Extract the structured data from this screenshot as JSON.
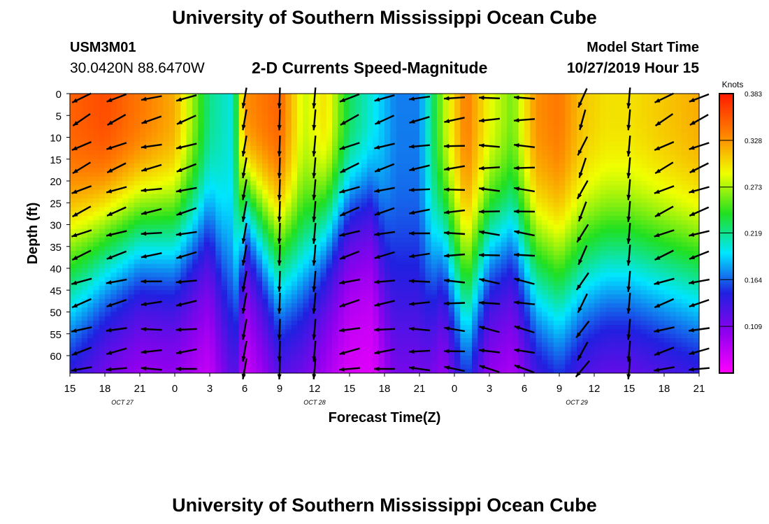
{
  "title": "University of Southern Mississippi Ocean Cube",
  "footer": "University of Southern Mississippi Ocean Cube",
  "station": "USM3M01",
  "coords": "30.0420N 88.6470W",
  "subtitle": "2-D Currents Speed-Magnitude",
  "start_label": "Model Start Time",
  "start_value": "10/27/2019 Hour 15",
  "chart_data": {
    "type": "heatmap",
    "xlabel": "Forecast Time(Z)",
    "ylabel": "Depth (ft)",
    "x_range": [
      0,
      54
    ],
    "y_range": [
      0,
      64
    ],
    "x_tick_labels": [
      "15",
      "18",
      "21",
      "0",
      "3",
      "6",
      "9",
      "12",
      "15",
      "18",
      "21",
      "0",
      "3",
      "6",
      "9",
      "12",
      "15",
      "18",
      "21"
    ],
    "date_labels": [
      {
        "text": "OCT 27",
        "x": 4.5
      },
      {
        "text": "OCT 28",
        "x": 21
      },
      {
        "text": "OCT 29",
        "x": 43.5
      }
    ],
    "y_ticks": [
      0,
      5,
      10,
      15,
      20,
      25,
      30,
      35,
      40,
      45,
      50,
      55,
      60
    ],
    "colorbar": {
      "label": "Knots",
      "min": 0.054,
      "max": 0.383,
      "ticks": [
        "0.383",
        "0.328",
        "0.273",
        "0.219",
        "0.164",
        "0.109"
      ],
      "tick_values": [
        0.383,
        0.328,
        0.273,
        0.219,
        0.164,
        0.109
      ],
      "colors": [
        "#ff00ff",
        "#9000ee",
        "#2020e0",
        "#00e6ff",
        "#20e020",
        "#f0ff00",
        "#ff8000",
        "#ff1a00"
      ]
    },
    "surface_speed_knots": [
      [
        0,
        0.35
      ],
      [
        3,
        0.36
      ],
      [
        6,
        0.34
      ],
      [
        9,
        0.32
      ],
      [
        12,
        0.22
      ],
      [
        14,
        0.2
      ],
      [
        15,
        0.33
      ],
      [
        18,
        0.35
      ],
      [
        20,
        0.28
      ],
      [
        22,
        0.3
      ],
      [
        24,
        0.23
      ],
      [
        26,
        0.2
      ],
      [
        28,
        0.17
      ],
      [
        30,
        0.17
      ],
      [
        32,
        0.27
      ],
      [
        34,
        0.34
      ],
      [
        36,
        0.29
      ],
      [
        38,
        0.26
      ],
      [
        40,
        0.33
      ],
      [
        42,
        0.34
      ],
      [
        44,
        0.31
      ],
      [
        46,
        0.3
      ],
      [
        48,
        0.3
      ],
      [
        51,
        0.31
      ],
      [
        54,
        0.32
      ]
    ],
    "penetration_depth_ft": [
      [
        0,
        48
      ],
      [
        3,
        40
      ],
      [
        6,
        36
      ],
      [
        9,
        38
      ],
      [
        12,
        36
      ],
      [
        14,
        64
      ],
      [
        15,
        28
      ],
      [
        18,
        44
      ],
      [
        20,
        46
      ],
      [
        22,
        36
      ],
      [
        24,
        30
      ],
      [
        26,
        30
      ],
      [
        28,
        64
      ],
      [
        30,
        64
      ],
      [
        32,
        40
      ],
      [
        34,
        54
      ],
      [
        36,
        40
      ],
      [
        38,
        38
      ],
      [
        40,
        48
      ],
      [
        42,
        52
      ],
      [
        44,
        48
      ],
      [
        46,
        46
      ],
      [
        48,
        46
      ],
      [
        51,
        48
      ],
      [
        54,
        50
      ]
    ],
    "vector_times": [
      1,
      4,
      7,
      10,
      15,
      18,
      21,
      24,
      27,
      30,
      33,
      36,
      39,
      44,
      48,
      51,
      54
    ],
    "vector_depths": [
      1,
      6,
      12,
      17,
      22,
      27,
      32,
      37,
      43,
      48,
      54,
      59,
      64
    ],
    "vector_directions_deg": [
      -150,
      -155,
      -165,
      -160,
      -100,
      -92,
      -95,
      -155,
      -160,
      -168,
      -172,
      -178,
      180,
      -110,
      -95,
      -150,
      -155
    ]
  }
}
